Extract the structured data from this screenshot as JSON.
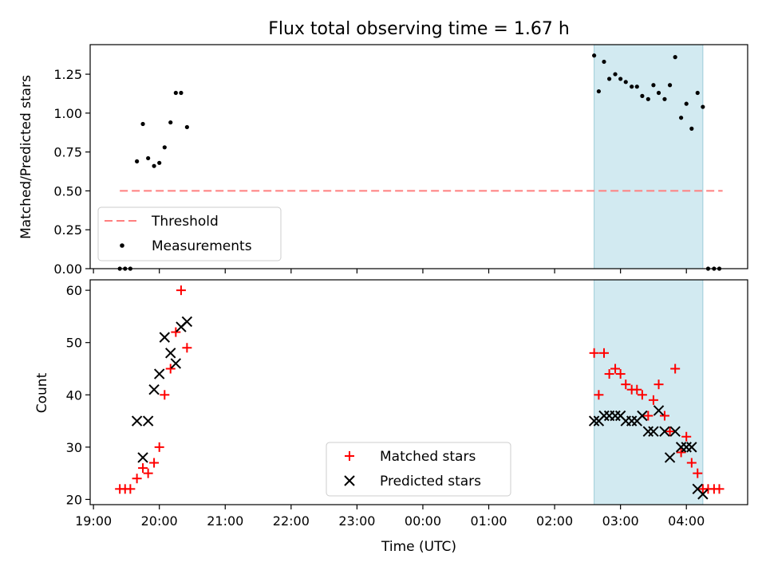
{
  "chart_data": [
    {
      "type": "scatter",
      "title": "Flux total observing time = 1.67 h",
      "ylabel": "Matched/Predicted stars",
      "xlabel": "",
      "xlim": [
        -0.05,
        9.93
      ],
      "ylim": [
        0.0,
        1.44
      ],
      "x_unit": "hours since 19:00 UTC",
      "yticks": [
        0.0,
        0.25,
        0.5,
        0.75,
        1.0,
        1.25
      ],
      "ytick_labels": [
        "0.00",
        "0.25",
        "0.50",
        "0.75",
        "1.00",
        "1.25"
      ],
      "shaded_region": {
        "x": [
          7.6,
          9.25
        ],
        "color": "#add8e6"
      },
      "threshold": {
        "value": 0.5,
        "x": [
          0.4,
          9.55
        ],
        "color": "#ff7f7f"
      },
      "legend": {
        "placement": "lower-left",
        "entries": [
          "Threshold",
          "Measurements"
        ]
      },
      "series": [
        {
          "name": "Measurements",
          "color": "#000000",
          "x": [
            0.4,
            0.48,
            0.56,
            0.66,
            0.75,
            0.83,
            0.92,
            1.0,
            1.08,
            1.17,
            1.25,
            1.33,
            1.42,
            7.6,
            7.67,
            7.75,
            7.83,
            7.92,
            8.0,
            8.08,
            8.17,
            8.25,
            8.33,
            8.42,
            8.5,
            8.58,
            8.67,
            8.75,
            8.83,
            8.92,
            9.0,
            9.08,
            9.17,
            9.25,
            9.33,
            9.42,
            9.5
          ],
          "y": [
            0.0,
            0.0,
            0.0,
            0.69,
            0.93,
            0.71,
            0.66,
            0.68,
            0.78,
            0.94,
            1.13,
            1.13,
            0.91,
            1.37,
            1.14,
            1.33,
            1.22,
            1.25,
            1.22,
            1.2,
            1.17,
            1.17,
            1.11,
            1.09,
            1.18,
            1.13,
            1.09,
            1.18,
            1.36,
            0.97,
            1.06,
            0.9,
            1.13,
            1.04,
            0.0,
            0.0,
            0.0
          ]
        }
      ]
    },
    {
      "type": "scatter",
      "title": "",
      "ylabel": "Count",
      "xlabel": "Time (UTC)",
      "xlim": [
        -0.05,
        9.93
      ],
      "ylim": [
        19.0,
        62.0
      ],
      "x_unit": "hours since 19:00 UTC",
      "xticks": [
        0,
        1,
        2,
        3,
        4,
        5,
        6,
        7,
        8,
        9
      ],
      "xtick_labels": [
        "19:00",
        "20:00",
        "21:00",
        "22:00",
        "23:00",
        "00:00",
        "01:00",
        "02:00",
        "03:00",
        "04:00"
      ],
      "yticks": [
        20,
        30,
        40,
        50,
        60
      ],
      "ytick_labels": [
        "20",
        "30",
        "40",
        "50",
        "60"
      ],
      "shaded_region": {
        "x": [
          7.6,
          9.25
        ],
        "color": "#add8e6"
      },
      "legend": {
        "placement": "lower-center",
        "entries": [
          "Matched stars",
          "Predicted stars"
        ]
      },
      "series": [
        {
          "name": "Matched stars",
          "marker": "plus",
          "color": "#ff0000",
          "x": [
            0.4,
            0.48,
            0.56,
            0.66,
            0.75,
            0.83,
            0.92,
            1.0,
            1.08,
            1.17,
            1.25,
            1.33,
            1.42,
            7.6,
            7.67,
            7.75,
            7.83,
            7.92,
            8.0,
            8.08,
            8.17,
            8.25,
            8.33,
            8.42,
            8.5,
            8.58,
            8.67,
            8.75,
            8.83,
            8.92,
            9.0,
            9.08,
            9.17,
            9.25,
            9.33,
            9.42,
            9.5
          ],
          "y": [
            22,
            22,
            22,
            24,
            26,
            25,
            27,
            30,
            40,
            45,
            52,
            60,
            49,
            48,
            40,
            48,
            44,
            45,
            44,
            42,
            41,
            41,
            40,
            36,
            39,
            42,
            36,
            33,
            45,
            29,
            32,
            27,
            25,
            22,
            22,
            22,
            22
          ]
        },
        {
          "name": "Predicted stars",
          "marker": "x",
          "color": "#000000",
          "x": [
            0.66,
            0.75,
            0.83,
            0.92,
            1.0,
            1.08,
            1.17,
            1.25,
            1.33,
            1.42,
            7.6,
            7.67,
            7.75,
            7.83,
            7.92,
            8.0,
            8.08,
            8.17,
            8.25,
            8.33,
            8.42,
            8.5,
            8.58,
            8.67,
            8.75,
            8.83,
            8.92,
            9.0,
            9.08,
            9.17,
            9.25
          ],
          "y": [
            35,
            28,
            35,
            41,
            44,
            51,
            48,
            46,
            53,
            54,
            35,
            35,
            36,
            36,
            36,
            36,
            35,
            35,
            35,
            36,
            33,
            33,
            37,
            33,
            28,
            33,
            30,
            30,
            30,
            22,
            21
          ]
        }
      ]
    }
  ]
}
